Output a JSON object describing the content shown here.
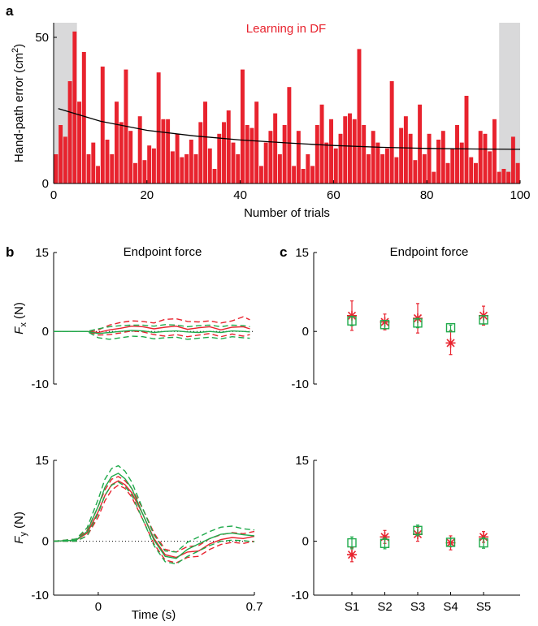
{
  "colors": {
    "red": "#e8232e",
    "green": "#1faa4b",
    "shade": "#d9d9da",
    "black": "#000000"
  },
  "panels": {
    "a": {
      "letter": "a"
    },
    "b": {
      "letter": "b"
    },
    "c": {
      "letter": "c"
    }
  },
  "chart_data": [
    {
      "id": "a",
      "type": "bar",
      "title": "Learning in DF",
      "xlabel": "Number of trials",
      "ylabel_main": "Hand-path error (cm",
      "ylabel_sup": "2",
      "ylabel_end": ")",
      "xlim": [
        0,
        100
      ],
      "ylim": [
        0,
        55
      ],
      "xticks": [
        0,
        20,
        40,
        60,
        80,
        100
      ],
      "yticks": [
        0,
        50
      ],
      "shaded_ranges": [
        [
          0,
          5
        ],
        [
          95.5,
          100
        ]
      ],
      "x": [
        1,
        2,
        3,
        4,
        5,
        6,
        7,
        8,
        9,
        10,
        11,
        12,
        13,
        14,
        15,
        16,
        17,
        18,
        19,
        20,
        21,
        22,
        23,
        24,
        25,
        26,
        27,
        28,
        29,
        30,
        31,
        32,
        33,
        34,
        35,
        36,
        37,
        38,
        39,
        40,
        41,
        42,
        43,
        44,
        45,
        46,
        47,
        48,
        49,
        50,
        51,
        52,
        53,
        54,
        55,
        56,
        57,
        58,
        59,
        60,
        61,
        62,
        63,
        64,
        65,
        66,
        67,
        68,
        69,
        70,
        71,
        72,
        73,
        74,
        75,
        76,
        77,
        78,
        79,
        80,
        81,
        82,
        83,
        84,
        85,
        86,
        87,
        88,
        89,
        90,
        91,
        92,
        93,
        94,
        95,
        96,
        97,
        98,
        99,
        100
      ],
      "values": [
        10,
        20,
        16,
        35,
        52,
        28,
        45,
        10,
        14,
        6,
        40,
        15,
        10,
        28,
        21,
        39,
        18,
        7,
        23,
        8,
        13,
        12,
        38,
        22,
        22,
        11,
        17,
        9,
        10,
        15,
        10,
        21,
        28,
        12,
        5,
        17,
        21,
        25,
        14,
        10,
        39,
        20,
        19,
        28,
        6,
        14,
        18,
        24,
        10,
        20,
        33,
        6,
        18,
        5,
        10,
        6,
        20,
        27,
        14,
        22,
        12,
        17,
        23,
        24,
        22,
        46,
        20,
        10,
        18,
        14,
        10,
        12,
        35,
        9,
        19,
        23,
        17,
        8,
        27,
        10,
        17,
        4,
        15,
        18,
        7,
        12,
        20,
        14,
        30,
        9,
        7,
        18,
        17,
        11,
        22,
        4,
        5,
        4,
        16,
        7
      ],
      "fit_curve": {
        "x": [
          1,
          10,
          20,
          30,
          40,
          50,
          60,
          70,
          80,
          90,
          100
        ],
        "y": [
          25.6,
          21.3,
          18.2,
          16.3,
          14.9,
          13.9,
          13.0,
          12.4,
          12.0,
          11.8,
          11.7
        ]
      }
    },
    {
      "id": "b-top",
      "type": "line",
      "title": "Endpoint force",
      "ylabel_main": "F",
      "ylabel_sub": "x",
      "ylabel_end": " (N)",
      "ylim": [
        -10,
        15
      ],
      "xlim": [
        -0.2,
        0.7
      ],
      "yticks": [
        -10,
        0,
        15
      ],
      "series": [
        {
          "color": "red",
          "dash": false,
          "x": [
            -0.2,
            -0.1,
            -0.05,
            0,
            0.05,
            0.1,
            0.15,
            0.2,
            0.25,
            0.3,
            0.35,
            0.4,
            0.45,
            0.5,
            0.55,
            0.6,
            0.65,
            0.68
          ],
          "y": [
            0,
            0,
            0,
            -0.2,
            0.3,
            0.6,
            1.0,
            0.9,
            0.5,
            0.8,
            1.0,
            0.4,
            0.7,
            0.9,
            0.3,
            0.8,
            0.9,
            0.5
          ]
        },
        {
          "color": "red",
          "dash": true,
          "x": [
            -0.2,
            -0.1,
            -0.05,
            0,
            0.05,
            0.1,
            0.15,
            0.2,
            0.25,
            0.3,
            0.35,
            0.4,
            0.45,
            0.5,
            0.55,
            0.6,
            0.65,
            0.68
          ],
          "y": [
            0,
            0,
            0,
            0.3,
            1.2,
            1.7,
            2.0,
            1.9,
            1.6,
            2.3,
            2.4,
            1.9,
            1.8,
            2.0,
            1.6,
            2.0,
            2.8,
            2.2
          ]
        },
        {
          "color": "red",
          "dash": true,
          "x": [
            -0.2,
            -0.1,
            -0.05,
            0,
            0.05,
            0.1,
            0.15,
            0.2,
            0.25,
            0.3,
            0.35,
            0.4,
            0.45,
            0.5,
            0.55,
            0.6,
            0.65,
            0.68
          ],
          "y": [
            0,
            0,
            0,
            -0.7,
            -0.6,
            -0.3,
            0.1,
            -0.1,
            -0.6,
            -0.9,
            -0.6,
            -1.0,
            -0.7,
            -0.4,
            -1.0,
            -0.5,
            -0.9,
            -0.6
          ]
        },
        {
          "color": "green",
          "dash": false,
          "x": [
            -0.2,
            -0.1,
            -0.05,
            0,
            0.05,
            0.1,
            0.15,
            0.2,
            0.25,
            0.3,
            0.35,
            0.4,
            0.45,
            0.5,
            0.55,
            0.6,
            0.65,
            0.68
          ],
          "y": [
            0,
            0,
            0,
            -0.4,
            -0.2,
            0.0,
            0.2,
            0.1,
            -0.2,
            0.0,
            0.1,
            -0.1,
            -0.2,
            0.0,
            -0.2,
            0.1,
            0.0,
            -0.1
          ]
        },
        {
          "color": "green",
          "dash": true,
          "x": [
            -0.2,
            -0.1,
            -0.05,
            0,
            0.05,
            0.1,
            0.15,
            0.2,
            0.25,
            0.3,
            0.35,
            0.4,
            0.45,
            0.5,
            0.55,
            0.6,
            0.65,
            0.68
          ],
          "y": [
            0,
            0,
            0,
            -1.2,
            -1.5,
            -1.2,
            -0.9,
            -1.0,
            -1.4,
            -1.2,
            -1.1,
            -1.5,
            -1.3,
            -1.1,
            -1.4,
            -1.0,
            -1.2,
            -1.3
          ]
        },
        {
          "color": "green",
          "dash": true,
          "x": [
            -0.2,
            -0.1,
            -0.05,
            0,
            0.05,
            0.1,
            0.15,
            0.2,
            0.25,
            0.3,
            0.35,
            0.4,
            0.45,
            0.5,
            0.55,
            0.6,
            0.65,
            0.68
          ],
          "y": [
            0,
            0,
            0,
            0.5,
            0.9,
            1.1,
            1.2,
            1.2,
            1.0,
            1.3,
            1.2,
            0.9,
            1.1,
            1.2,
            0.9,
            1.2,
            1.1,
            0.9
          ]
        }
      ]
    },
    {
      "id": "b-bottom",
      "type": "line",
      "xlabel": "Time (s)",
      "ylabel_main": "F",
      "ylabel_sub": "y",
      "ylabel_end": " (N)",
      "ylim": [
        -10,
        15
      ],
      "xlim": [
        -0.2,
        0.7
      ],
      "xticks": [
        0,
        0.7
      ],
      "yticks": [
        -10,
        0,
        15
      ],
      "series": [
        {
          "color": "red",
          "dash": false,
          "x": [
            -0.2,
            -0.1,
            -0.05,
            0,
            0.03,
            0.06,
            0.09,
            0.12,
            0.15,
            0.2,
            0.25,
            0.3,
            0.35,
            0.4,
            0.45,
            0.5,
            0.55,
            0.6,
            0.65,
            0.7
          ],
          "y": [
            0,
            0.2,
            1.5,
            5.5,
            8.5,
            10.5,
            11.2,
            10.5,
            9.0,
            5.0,
            0.5,
            -2.5,
            -3.0,
            -2.0,
            -1.8,
            -0.5,
            0.3,
            0.7,
            0.5,
            0.9
          ]
        },
        {
          "color": "red",
          "dash": true,
          "x": [
            -0.2,
            -0.1,
            -0.05,
            0,
            0.03,
            0.06,
            0.09,
            0.12,
            0.15,
            0.2,
            0.25,
            0.3,
            0.35,
            0.4,
            0.45,
            0.5,
            0.55,
            0.6,
            0.65,
            0.7
          ],
          "y": [
            0,
            0.4,
            2.0,
            6.5,
            9.5,
            11.5,
            12.0,
            11.2,
            9.8,
            6.0,
            1.5,
            -1.5,
            -2.0,
            -1.0,
            -0.8,
            0.5,
            1.2,
            1.6,
            1.4,
            1.8
          ]
        },
        {
          "color": "red",
          "dash": true,
          "x": [
            -0.2,
            -0.1,
            -0.05,
            0,
            0.03,
            0.06,
            0.09,
            0.12,
            0.15,
            0.2,
            0.25,
            0.3,
            0.35,
            0.4,
            0.45,
            0.5,
            0.55,
            0.6,
            0.65,
            0.7
          ],
          "y": [
            0,
            0,
            1.0,
            4.5,
            7.5,
            9.5,
            10.4,
            9.8,
            8.2,
            4.0,
            -0.5,
            -3.5,
            -4.0,
            -3.0,
            -2.8,
            -1.5,
            -0.6,
            -0.2,
            -0.4,
            0.0
          ]
        },
        {
          "color": "green",
          "dash": false,
          "x": [
            -0.2,
            -0.1,
            -0.05,
            0,
            0.03,
            0.06,
            0.09,
            0.12,
            0.15,
            0.2,
            0.25,
            0.3,
            0.35,
            0.4,
            0.45,
            0.5,
            0.55,
            0.6,
            0.65,
            0.7
          ],
          "y": [
            0,
            0.2,
            1.8,
            6.5,
            10.0,
            12.0,
            12.6,
            11.6,
            9.8,
            5.0,
            0.2,
            -2.8,
            -3.2,
            -1.5,
            -0.5,
            0.5,
            1.3,
            1.5,
            1.2,
            1.0
          ]
        },
        {
          "color": "green",
          "dash": true,
          "x": [
            -0.2,
            -0.1,
            -0.05,
            0,
            0.03,
            0.06,
            0.09,
            0.12,
            0.15,
            0.2,
            0.25,
            0.3,
            0.35,
            0.4,
            0.45,
            0.5,
            0.55,
            0.6,
            0.65,
            0.7
          ],
          "y": [
            0,
            0.4,
            2.5,
            7.8,
            11.5,
            13.5,
            14.0,
            13.0,
            11.0,
            6.0,
            1.2,
            -1.8,
            -2.0,
            -0.2,
            0.8,
            1.8,
            2.6,
            2.8,
            2.3,
            2.1
          ]
        },
        {
          "color": "green",
          "dash": true,
          "x": [
            -0.2,
            -0.1,
            -0.05,
            0,
            0.03,
            0.06,
            0.09,
            0.12,
            0.15,
            0.2,
            0.25,
            0.3,
            0.35,
            0.4,
            0.45,
            0.5,
            0.55,
            0.6,
            0.65,
            0.7
          ],
          "y": [
            0,
            0,
            1.0,
            5.2,
            8.5,
            10.4,
            11.0,
            10.2,
            8.6,
            4.0,
            -0.8,
            -3.8,
            -4.2,
            -2.8,
            -1.8,
            -0.8,
            0.0,
            0.2,
            0.1,
            -0.1
          ]
        }
      ]
    },
    {
      "id": "c-top",
      "type": "scatter",
      "title": "Endpoint force",
      "categories": [
        "S1",
        "S2",
        "S3",
        "S4",
        "S5"
      ],
      "ylim": [
        -10,
        15
      ],
      "yticks": [
        -10,
        0,
        15
      ],
      "series": [
        {
          "color": "red",
          "marker": "asterisk",
          "values": [
            3.0,
            1.8,
            2.5,
            -2.2,
            3.0
          ],
          "err": [
            2.8,
            1.5,
            2.8,
            2.2,
            1.8
          ]
        },
        {
          "color": "green",
          "marker": "square",
          "values": [
            2.0,
            1.3,
            1.6,
            0.7,
            2.2
          ],
          "err": [
            0.9,
            0.8,
            0.9,
            0.5,
            0.8
          ]
        }
      ]
    },
    {
      "id": "c-bottom",
      "type": "scatter",
      "categories": [
        "S1",
        "S2",
        "S3",
        "S4",
        "S5"
      ],
      "ylim": [
        -10,
        15
      ],
      "yticks": [
        -10,
        0,
        15
      ],
      "series": [
        {
          "color": "red",
          "marker": "asterisk",
          "values": [
            -2.5,
            0.8,
            1.3,
            -0.3,
            0.8
          ],
          "err": [
            1.3,
            1.2,
            1.3,
            1.3,
            1.0
          ]
        },
        {
          "color": "green",
          "marker": "square",
          "values": [
            -0.3,
            -0.4,
            2.0,
            -0.2,
            -0.3
          ],
          "err": [
            1.1,
            1.0,
            1.0,
            0.8,
            1.0
          ]
        }
      ]
    }
  ]
}
